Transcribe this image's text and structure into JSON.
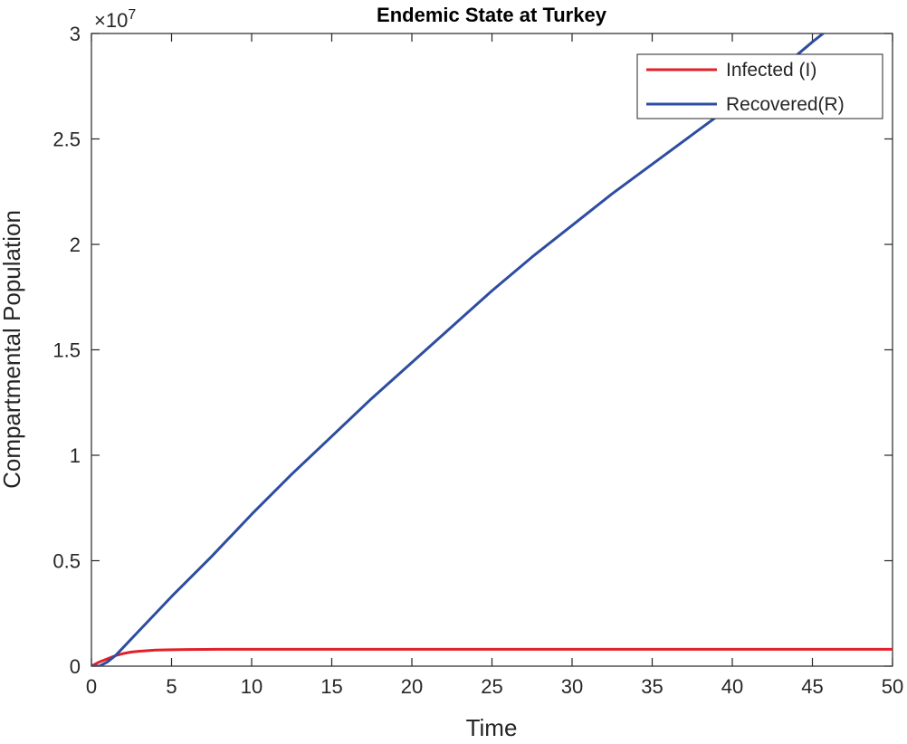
{
  "chart_data": {
    "type": "line",
    "title": "Endemic State at Turkey",
    "xlabel": "Time",
    "ylabel": "Compartmental Population",
    "y_exponent_label": "×10",
    "y_exponent_power": "7",
    "xlim": [
      0,
      50
    ],
    "ylim": [
      0,
      3
    ],
    "xticks": [
      "0",
      "5",
      "10",
      "15",
      "20",
      "25",
      "30",
      "35",
      "40",
      "45",
      "50"
    ],
    "yticks": [
      "0",
      "0.5",
      "1",
      "1.5",
      "2",
      "2.5",
      "3"
    ],
    "grid": false,
    "legend_position": "top-right",
    "series": [
      {
        "name": "Infected (I)",
        "color": "#e3202a",
        "x": [
          0,
          0.5,
          1,
          1.5,
          2,
          2.5,
          3,
          4,
          5,
          6,
          8,
          10,
          15,
          20,
          25,
          30,
          35,
          40,
          45,
          50
        ],
        "y": [
          0,
          0.02,
          0.035,
          0.05,
          0.06,
          0.067,
          0.071,
          0.076,
          0.078,
          0.079,
          0.08,
          0.08,
          0.08,
          0.08,
          0.08,
          0.08,
          0.08,
          0.08,
          0.08,
          0.08
        ]
      },
      {
        "name": "Recovered(R)",
        "color": "#2e4da0",
        "x": [
          0,
          0.5,
          1,
          1.5,
          2,
          3,
          4,
          5,
          7.5,
          10,
          12.5,
          15,
          17.5,
          20,
          22.5,
          25,
          27.5,
          30,
          32.5,
          35,
          37.5,
          40,
          42.5,
          45,
          47.5,
          50
        ],
        "y": [
          0,
          0.0,
          0.02,
          0.05,
          0.09,
          0.17,
          0.25,
          0.33,
          0.52,
          0.72,
          0.91,
          1.09,
          1.27,
          1.44,
          1.61,
          1.78,
          1.94,
          2.09,
          2.24,
          2.38,
          2.52,
          2.66,
          2.8,
          2.96,
          3.11,
          3.27
        ]
      }
    ]
  }
}
